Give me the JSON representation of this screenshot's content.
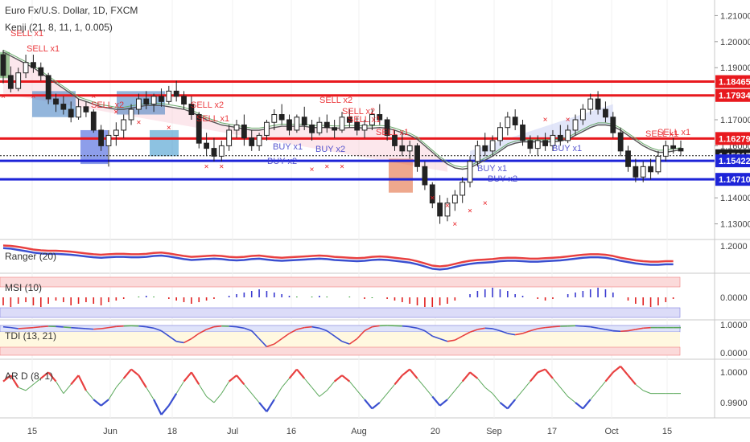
{
  "chart_data": {
    "type": "candlestick",
    "title": "Euro Fx/U.S. Dollar, 1D, FXCM",
    "indicator_label": "Kenji (21, 8, 11, 1, 0.005)",
    "x_tick_labels": [
      "15",
      "Jun",
      "18",
      "Jul",
      "16",
      "Aug",
      "20",
      "Sep",
      "17",
      "Oct",
      "15"
    ],
    "y_ticks": [
      "1.21000",
      "1.20000",
      "1.19000",
      "1.17000",
      "1.16000",
      "1.14000",
      "1.13000"
    ],
    "price_lines": [
      {
        "value": "1.18465",
        "color": "#e8191e"
      },
      {
        "value": "1.17934",
        "color": "#e8191e"
      },
      {
        "value": "1.16279",
        "color": "#e8191e"
      },
      {
        "value": "1.15617",
        "color": "#1a1a1a"
      },
      {
        "value": "1.15422",
        "color": "#1d24d8"
      },
      {
        "value": "1.14710",
        "color": "#1d24d8"
      }
    ],
    "signals": [
      {
        "text": "SELL x1",
        "color": "#e8191e"
      },
      {
        "text": "SELL x1",
        "color": "#e8191e"
      },
      {
        "text": "SELL x2",
        "color": "#e8191e"
      },
      {
        "text": "SELL x2",
        "color": "#e8191e"
      },
      {
        "text": "SELL x1",
        "color": "#e8191e"
      },
      {
        "text": "SELL x2",
        "color": "#e8191e"
      },
      {
        "text": "SELL x2",
        "color": "#e8191e"
      },
      {
        "text": "SELL x1",
        "color": "#e8191e"
      },
      {
        "text": "SELL x1",
        "color": "#e8191e"
      },
      {
        "text": "SELL x1",
        "color": "#e8191e"
      },
      {
        "text": "SELL x1",
        "color": "#e8191e"
      },
      {
        "text": "BUY x1",
        "color": "#3b3bc8"
      },
      {
        "text": "BUY x2",
        "color": "#3b3bc8"
      },
      {
        "text": "BUY x2",
        "color": "#3b3bc8"
      },
      {
        "text": "BUY x1",
        "color": "#3b3bc8"
      },
      {
        "text": "BUY x2",
        "color": "#3b3bc8"
      },
      {
        "text": "BUY x1",
        "color": "#3b3bc8"
      }
    ],
    "candles": [
      [
        1.195,
        1.1968,
        1.184,
        1.187
      ],
      [
        1.187,
        1.1905,
        1.1805,
        1.182
      ],
      [
        1.182,
        1.19,
        1.181,
        1.188
      ],
      [
        1.188,
        1.195,
        1.186,
        1.192
      ],
      [
        1.192,
        1.195,
        1.188,
        1.19
      ],
      [
        1.19,
        1.192,
        1.185,
        1.187
      ],
      [
        1.187,
        1.188,
        1.176,
        1.178
      ],
      [
        1.178,
        1.18,
        1.173,
        1.176
      ],
      [
        1.176,
        1.179,
        1.172,
        1.174
      ],
      [
        1.174,
        1.177,
        1.169,
        1.171
      ],
      [
        1.171,
        1.178,
        1.17,
        1.175
      ],
      [
        1.175,
        1.177,
        1.171,
        1.173
      ],
      [
        1.173,
        1.174,
        1.165,
        1.166
      ],
      [
        1.166,
        1.168,
        1.158,
        1.16
      ],
      [
        1.16,
        1.166,
        1.152,
        1.164
      ],
      [
        1.164,
        1.169,
        1.16,
        1.166
      ],
      [
        1.166,
        1.172,
        1.163,
        1.17
      ],
      [
        1.17,
        1.176,
        1.168,
        1.174
      ],
      [
        1.174,
        1.18,
        1.172,
        1.178
      ],
      [
        1.178,
        1.181,
        1.174,
        1.176
      ],
      [
        1.176,
        1.18,
        1.173,
        1.179
      ],
      [
        1.179,
        1.182,
        1.175,
        1.177
      ],
      [
        1.177,
        1.183,
        1.176,
        1.181
      ],
      [
        1.181,
        1.185,
        1.177,
        1.179
      ],
      [
        1.179,
        1.181,
        1.174,
        1.176
      ],
      [
        1.176,
        1.179,
        1.17,
        1.172
      ],
      [
        1.172,
        1.173,
        1.159,
        1.161
      ],
      [
        1.161,
        1.165,
        1.156,
        1.159
      ],
      [
        1.159,
        1.163,
        1.154,
        1.156
      ],
      [
        1.156,
        1.162,
        1.154,
        1.16
      ],
      [
        1.16,
        1.168,
        1.158,
        1.166
      ],
      [
        1.166,
        1.17,
        1.163,
        1.168
      ],
      [
        1.168,
        1.172,
        1.16,
        1.163
      ],
      [
        1.163,
        1.166,
        1.158,
        1.16
      ],
      [
        1.16,
        1.165,
        1.158,
        1.164
      ],
      [
        1.164,
        1.17,
        1.162,
        1.169
      ],
      [
        1.169,
        1.174,
        1.166,
        1.172
      ],
      [
        1.172,
        1.176,
        1.168,
        1.17
      ],
      [
        1.17,
        1.172,
        1.164,
        1.166
      ],
      [
        1.166,
        1.172,
        1.165,
        1.171
      ],
      [
        1.171,
        1.175,
        1.166,
        1.168
      ],
      [
        1.168,
        1.17,
        1.162,
        1.165
      ],
      [
        1.165,
        1.171,
        1.164,
        1.169
      ],
      [
        1.169,
        1.172,
        1.165,
        1.167
      ],
      [
        1.167,
        1.17,
        1.163,
        1.166
      ],
      [
        1.166,
        1.173,
        1.165,
        1.171
      ],
      [
        1.171,
        1.174,
        1.167,
        1.169
      ],
      [
        1.169,
        1.171,
        1.164,
        1.166
      ],
      [
        1.166,
        1.17,
        1.163,
        1.168
      ],
      [
        1.168,
        1.174,
        1.166,
        1.172
      ],
      [
        1.172,
        1.176,
        1.168,
        1.17
      ],
      [
        1.17,
        1.171,
        1.162,
        1.164
      ],
      [
        1.164,
        1.166,
        1.158,
        1.16
      ],
      [
        1.16,
        1.165,
        1.156,
        1.158
      ],
      [
        1.158,
        1.162,
        1.155,
        1.16
      ],
      [
        1.16,
        1.161,
        1.15,
        1.152
      ],
      [
        1.152,
        1.154,
        1.143,
        1.145
      ],
      [
        1.145,
        1.146,
        1.136,
        1.138
      ],
      [
        1.138,
        1.141,
        1.13,
        1.133
      ],
      [
        1.133,
        1.14,
        1.131,
        1.138
      ],
      [
        1.138,
        1.143,
        1.135,
        1.141
      ],
      [
        1.141,
        1.148,
        1.138,
        1.146
      ],
      [
        1.146,
        1.156,
        1.144,
        1.154
      ],
      [
        1.154,
        1.162,
        1.152,
        1.16
      ],
      [
        1.16,
        1.165,
        1.156,
        1.158
      ],
      [
        1.158,
        1.164,
        1.156,
        1.162
      ],
      [
        1.162,
        1.169,
        1.16,
        1.167
      ],
      [
        1.167,
        1.173,
        1.164,
        1.171
      ],
      [
        1.171,
        1.174,
        1.166,
        1.168
      ],
      [
        1.168,
        1.17,
        1.16,
        1.162
      ],
      [
        1.162,
        1.164,
        1.157,
        1.159
      ],
      [
        1.159,
        1.164,
        1.156,
        1.162
      ],
      [
        1.162,
        1.165,
        1.158,
        1.16
      ],
      [
        1.16,
        1.166,
        1.158,
        1.164
      ],
      [
        1.164,
        1.168,
        1.16,
        1.162
      ],
      [
        1.162,
        1.168,
        1.161,
        1.166
      ],
      [
        1.166,
        1.172,
        1.164,
        1.17
      ],
      [
        1.17,
        1.176,
        1.168,
        1.174
      ],
      [
        1.174,
        1.18,
        1.172,
        1.178
      ],
      [
        1.178,
        1.181,
        1.172,
        1.174
      ],
      [
        1.174,
        1.177,
        1.169,
        1.171
      ],
      [
        1.171,
        1.173,
        1.163,
        1.165
      ],
      [
        1.165,
        1.167,
        1.156,
        1.158
      ],
      [
        1.158,
        1.16,
        1.15,
        1.152
      ],
      [
        1.152,
        1.155,
        1.146,
        1.148
      ],
      [
        1.148,
        1.154,
        1.146,
        1.152
      ],
      [
        1.152,
        1.155,
        1.147,
        1.15
      ],
      [
        1.15,
        1.158,
        1.149,
        1.156
      ],
      [
        1.156,
        1.162,
        1.154,
        1.16
      ],
      [
        1.16,
        1.163,
        1.157,
        1.159
      ],
      [
        1.159,
        1.162,
        1.156,
        1.158
      ]
    ],
    "trend_line": [
      1.196,
      1.1945,
      1.193,
      1.1915,
      1.19,
      1.188,
      1.186,
      1.184,
      1.182,
      1.18,
      1.178,
      1.177,
      1.176,
      1.175,
      1.1745,
      1.174,
      1.174,
      1.1745,
      1.175,
      1.1755,
      1.1755,
      1.1755,
      1.175,
      1.1745,
      1.174,
      1.173,
      1.1715,
      1.17,
      1.169,
      1.168,
      1.1675,
      1.167,
      1.1665,
      1.166,
      1.166,
      1.1665,
      1.167,
      1.1675,
      1.1675,
      1.1675,
      1.1675,
      1.167,
      1.167,
      1.167,
      1.1668,
      1.1668,
      1.167,
      1.167,
      1.1668,
      1.1668,
      1.167,
      1.1668,
      1.166,
      1.165,
      1.164,
      1.1625,
      1.16,
      1.1575,
      1.155,
      1.153,
      1.1515,
      1.151,
      1.1515,
      1.153,
      1.1545,
      1.156,
      1.158,
      1.16,
      1.161,
      1.1615,
      1.1615,
      1.1615,
      1.1615,
      1.1615,
      1.1618,
      1.1625,
      1.164,
      1.1655,
      1.167,
      1.168,
      1.168,
      1.1675,
      1.166,
      1.164,
      1.162,
      1.16,
      1.1585,
      1.1575,
      1.1575,
      1.158,
      1.1585
    ],
    "ranger": {
      "y_ticks": [
        "1.2000"
      ],
      "upper": [
        1.196,
        1.195,
        1.193,
        1.19,
        1.187,
        1.185,
        1.184,
        1.184,
        1.183,
        1.182,
        1.18,
        1.178,
        1.176,
        1.175,
        1.176,
        1.177,
        1.177,
        1.176,
        1.176,
        1.177,
        1.179,
        1.18,
        1.178,
        1.175,
        1.172,
        1.17,
        1.171,
        1.172,
        1.173,
        1.172,
        1.17,
        1.169,
        1.17,
        1.172,
        1.173,
        1.171,
        1.169,
        1.168,
        1.169,
        1.17,
        1.171,
        1.172,
        1.173,
        1.172,
        1.17,
        1.169,
        1.168,
        1.167,
        1.168,
        1.17,
        1.171,
        1.17,
        1.168,
        1.166,
        1.164,
        1.16,
        1.155,
        1.15,
        1.148,
        1.15,
        1.154,
        1.158,
        1.161,
        1.163,
        1.164,
        1.165,
        1.167,
        1.168,
        1.168,
        1.167,
        1.166,
        1.166,
        1.167,
        1.168,
        1.169,
        1.171,
        1.173,
        1.175,
        1.176,
        1.176,
        1.175,
        1.172,
        1.168,
        1.165,
        1.162,
        1.16,
        1.159,
        1.159,
        1.16,
        1.16
      ],
      "lower": [
        1.19,
        1.189,
        1.186,
        1.183,
        1.18,
        1.178,
        1.177,
        1.177,
        1.176,
        1.175,
        1.173,
        1.171,
        1.169,
        1.168,
        1.169,
        1.17,
        1.17,
        1.169,
        1.169,
        1.17,
        1.172,
        1.173,
        1.171,
        1.168,
        1.165,
        1.163,
        1.164,
        1.165,
        1.166,
        1.165,
        1.163,
        1.162,
        1.163,
        1.165,
        1.166,
        1.164,
        1.162,
        1.161,
        1.162,
        1.163,
        1.164,
        1.165,
        1.166,
        1.165,
        1.163,
        1.162,
        1.161,
        1.16,
        1.161,
        1.163,
        1.164,
        1.163,
        1.161,
        1.159,
        1.157,
        1.153,
        1.148,
        1.143,
        1.141,
        1.143,
        1.147,
        1.151,
        1.154,
        1.156,
        1.157,
        1.158,
        1.16,
        1.161,
        1.161,
        1.16,
        1.159,
        1.159,
        1.16,
        1.161,
        1.162,
        1.164,
        1.166,
        1.168,
        1.169,
        1.169,
        1.168,
        1.165,
        1.161,
        1.158,
        1.155,
        1.153,
        1.152,
        1.152,
        1.153,
        1.153
      ]
    },
    "msi": {
      "y_ticks": [
        "0.0000"
      ],
      "values": [
        -0.5,
        -0.6,
        -0.4,
        -0.3,
        -0.5,
        -0.6,
        -0.4,
        -0.2,
        -0.3,
        -0.5,
        -0.4,
        -0.3,
        -0.4,
        -0.5,
        -0.3,
        -0.2,
        -0.1,
        0,
        0.05,
        0.1,
        0.05,
        0,
        -0.1,
        -0.2,
        -0.3,
        -0.4,
        -0.3,
        -0.2,
        -0.1,
        0,
        0.1,
        0.2,
        0.3,
        0.4,
        0.5,
        0.4,
        0.3,
        0.2,
        0.1,
        0.05,
        0,
        0.05,
        0.1,
        0.05,
        0,
        0,
        0.05,
        0,
        -0.1,
        -0.05,
        0,
        -0.1,
        -0.2,
        -0.3,
        -0.4,
        -0.5,
        -0.6,
        -0.6,
        -0.5,
        -0.4,
        -0.2,
        0,
        0.2,
        0.4,
        0.5,
        0.6,
        0.5,
        0.4,
        0.2,
        0.1,
        0,
        -0.1,
        -0.2,
        -0.1,
        0,
        0.2,
        0.3,
        0.4,
        0.5,
        0.6,
        0.5,
        0.3,
        0,
        -0.2,
        -0.4,
        -0.5,
        -0.6,
        -0.5,
        -0.3,
        -0.1,
        0
      ]
    },
    "tdi": {
      "y_ticks": [
        "1.0000",
        "0.0000"
      ],
      "values": [
        0.95,
        0.92,
        0.88,
        0.9,
        0.92,
        0.95,
        0.97,
        0.96,
        0.94,
        0.92,
        0.9,
        0.88,
        0.86,
        0.88,
        0.92,
        0.96,
        0.98,
        0.99,
        0.98,
        0.95,
        0.9,
        0.8,
        0.6,
        0.4,
        0.35,
        0.5,
        0.7,
        0.85,
        0.95,
        0.98,
        0.97,
        0.95,
        0.9,
        0.8,
        0.5,
        0.2,
        0.3,
        0.5,
        0.7,
        0.85,
        0.92,
        0.95,
        0.9,
        0.8,
        0.6,
        0.4,
        0.3,
        0.5,
        0.8,
        0.95,
        0.99,
        1.0,
        0.99,
        0.98,
        0.95,
        0.9,
        0.8,
        0.6,
        0.5,
        0.4,
        0.45,
        0.6,
        0.75,
        0.85,
        0.9,
        0.88,
        0.8,
        0.7,
        0.65,
        0.7,
        0.8,
        0.88,
        0.92,
        0.95,
        0.97,
        0.98,
        0.99,
        0.97,
        0.95,
        0.9,
        0.85,
        0.8,
        0.78,
        0.8,
        0.85,
        0.9,
        0.92,
        0.92,
        0.92,
        0.92,
        0.92
      ]
    },
    "ard": {
      "y_ticks": [
        "1.0000",
        "0.9900"
      ],
      "values": [
        0.996,
        0.998,
        0.994,
        0.993,
        0.995,
        0.997,
        0.999,
        0.996,
        0.992,
        0.995,
        0.998,
        0.993,
        0.99,
        0.988,
        0.99,
        0.994,
        0.997,
        1.0,
        0.998,
        0.994,
        0.99,
        0.985,
        0.988,
        0.992,
        0.996,
        0.999,
        0.995,
        0.991,
        0.989,
        0.992,
        0.996,
        0.998,
        0.995,
        0.992,
        0.989,
        0.986,
        0.99,
        0.994,
        0.997,
        1.0,
        0.997,
        0.994,
        0.991,
        0.993,
        0.996,
        0.998,
        0.996,
        0.993,
        0.99,
        0.987,
        0.989,
        0.992,
        0.995,
        0.998,
        1.0,
        0.997,
        0.994,
        0.991,
        0.988,
        0.99,
        0.993,
        0.996,
        0.999,
        0.997,
        0.994,
        0.992,
        0.989,
        0.987,
        0.99,
        0.993,
        0.996,
        0.999,
        1.0,
        0.997,
        0.994,
        0.991,
        0.989,
        0.987,
        0.99,
        0.993,
        0.996,
        0.999,
        1.001,
        0.998,
        0.995,
        0.993,
        0.992,
        0.992,
        0.992,
        0.992,
        0.992
      ]
    }
  },
  "panes": {
    "ranger_label": "Ranger (20)",
    "msi_label": "MSI (10)",
    "tdi_label": "TDI (13, 21)",
    "ard_label": "AR D (8, 1)"
  }
}
